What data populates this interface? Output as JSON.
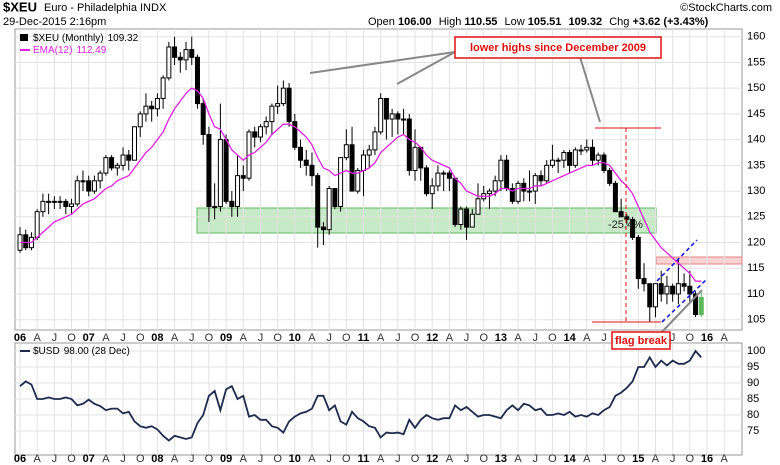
{
  "header": {
    "symbol": "$XEU",
    "name": "Euro - Philadelphia INDX",
    "date": "29-Dec-2015 2:16pm",
    "open_label": "Open",
    "open": "106.00",
    "high_label": "High",
    "high": "110.55",
    "low_label": "Low",
    "low": "105.51",
    "close": "109.32",
    "change_label": "Chg",
    "change": "+3.62 (+3.43%)",
    "credit": "©StockCharts.com"
  },
  "annotations": {
    "lower_highs": "lower highs since December 2009",
    "decline": "-25.4%",
    "flag_break": "flag break"
  },
  "chart_data": [
    {
      "type": "candlestick",
      "ohlc": {
        "name": "$XEU (Monthly)",
        "last_label": "109.32",
        "color": "#000000",
        "last_color": "#5cb85c",
        "open": [
          118.5,
          121.5,
          119,
          121,
          126,
          128,
          128,
          128,
          128,
          127,
          127.5,
          132,
          132,
          130,
          132,
          133.5,
          136.5,
          134.5,
          135,
          137,
          136,
          142.5,
          145,
          146.5,
          146,
          148,
          152,
          158,
          156,
          155.5,
          157.5,
          156,
          147,
          141,
          127,
          127,
          140,
          128,
          127,
          133,
          132.5,
          141.5,
          140.5,
          142.5,
          143.5,
          146.5,
          147,
          150,
          143.5,
          138.5,
          136,
          135,
          133,
          123,
          122.5,
          130.5,
          127,
          136.5,
          139,
          130,
          134,
          137,
          138,
          141.5,
          148,
          144,
          145,
          144,
          144,
          134,
          138.5,
          134.5,
          129.5,
          131,
          133.5,
          133.5,
          132.5,
          123.5,
          126.5,
          123,
          125.5,
          128.5,
          129.5,
          130,
          132,
          136,
          130.5,
          128,
          131.5,
          130,
          130,
          133,
          132,
          135,
          136,
          136,
          137.5,
          135,
          138,
          138,
          138.5,
          136,
          137,
          134,
          131.5,
          126,
          125,
          124.5,
          121,
          113,
          112,
          107.5,
          112,
          110,
          111.5,
          110,
          112,
          111.5,
          110,
          106.0
        ],
        "high": [
          123,
          122.5,
          122,
          126.5,
          129.5,
          129.5,
          129,
          129,
          128.5,
          128.5,
          133,
          134,
          133,
          133,
          134,
          137,
          137,
          135.5,
          138.5,
          138,
          142.5,
          145.5,
          149,
          147.5,
          149,
          152.5,
          159,
          160,
          157,
          159,
          160,
          156.5,
          148,
          142.5,
          131.5,
          147,
          141,
          130,
          137,
          135,
          142,
          142.5,
          143,
          144.5,
          147,
          150.5,
          151.5,
          151,
          145,
          140,
          138,
          137.5,
          133.5,
          124,
          131,
          130,
          136.5,
          142,
          142.5,
          134.5,
          138,
          139,
          142.5,
          149,
          148,
          146,
          145.5,
          146,
          145,
          142,
          137,
          135,
          132.5,
          135,
          134,
          134,
          132.5,
          127,
          127,
          126.5,
          131.5,
          131,
          130.5,
          133,
          137,
          137,
          131.5,
          132,
          132.5,
          134,
          133.5,
          134,
          136,
          139,
          136.5,
          138,
          138,
          138.5,
          139,
          140,
          140,
          137.5,
          137.5,
          134.5,
          132,
          128.5,
          125.5,
          125,
          121.5,
          116,
          112,
          112,
          114.5,
          113.5,
          112,
          117,
          114,
          114.5,
          110.5,
          110.55
        ],
        "low": [
          118,
          118.5,
          118.5,
          120.5,
          125,
          125.5,
          126.5,
          126.5,
          125.5,
          125.5,
          127,
          130,
          129,
          129.5,
          130.5,
          133,
          134,
          133,
          134,
          134,
          136,
          140.5,
          143.5,
          143.5,
          144.5,
          146,
          151.5,
          154.5,
          153,
          153.5,
          154.5,
          146,
          139,
          124,
          124.5,
          126,
          127.5,
          125,
          125,
          130,
          132,
          138.5,
          139.5,
          141,
          141,
          145,
          146.5,
          142.5,
          138,
          134.5,
          133,
          131,
          119,
          119.5,
          121.5,
          126.5,
          126,
          136,
          130,
          129.5,
          129,
          134.5,
          137,
          141,
          140,
          140.5,
          141,
          141,
          133,
          132,
          132,
          129,
          126.5,
          130,
          130,
          130,
          123,
          122.5,
          120.5,
          123.5,
          125.5,
          128,
          126.5,
          129,
          130,
          130,
          127.5,
          127.5,
          128,
          128,
          127.5,
          131,
          131.5,
          134.5,
          133.5,
          134.5,
          133.5,
          134.5,
          137,
          137.5,
          135,
          135,
          133.5,
          131,
          126,
          125,
          123.5,
          120.5,
          111,
          110.5,
          104.5,
          105.5,
          108.5,
          108,
          108.5,
          108,
          110.5,
          108.5,
          105.5,
          105.51
        ],
        "close": [
          121.5,
          119,
          121,
          126,
          128,
          128,
          128,
          128,
          127,
          127.5,
          132,
          132,
          130,
          132,
          133.5,
          136.5,
          134.5,
          135,
          137,
          136,
          142.5,
          145,
          146.5,
          146,
          148,
          152,
          158,
          156,
          155.5,
          157.5,
          156,
          147,
          141,
          127,
          127,
          140,
          128,
          127,
          133,
          132.5,
          141.5,
          140.5,
          142.5,
          143.5,
          146.5,
          147,
          150,
          143.5,
          138.5,
          136,
          135,
          133,
          123,
          122.5,
          130.5,
          127,
          136.5,
          139,
          130,
          134,
          137,
          138,
          141.5,
          148,
          144,
          145,
          144,
          144,
          134,
          138.5,
          134.5,
          129.5,
          131,
          133.5,
          133.5,
          132.5,
          123.5,
          126.5,
          123,
          125.5,
          128.5,
          129.5,
          130,
          132,
          136,
          130.5,
          128,
          131.5,
          130,
          130,
          133,
          132,
          135,
          136,
          136,
          137.5,
          135,
          138,
          138,
          138.5,
          136,
          137,
          134,
          131.5,
          126,
          125,
          124.5,
          121,
          113,
          112,
          107.5,
          112,
          110,
          111.5,
          110,
          112,
          111.5,
          110,
          106,
          109.32
        ]
      },
      "series": [
        {
          "name": "EMA(12)",
          "last_label": "112.49",
          "color": "#e020e0",
          "values": [
            120,
            120,
            120,
            121,
            122,
            123,
            124,
            124.5,
            125,
            125.5,
            126.5,
            127.5,
            128,
            128.5,
            129.5,
            130.5,
            131,
            132,
            132.5,
            133,
            134.5,
            136,
            137.5,
            138.5,
            140,
            141.5,
            144,
            146,
            147.5,
            149,
            150,
            149.5,
            148,
            145,
            142.5,
            142,
            140,
            138,
            137,
            136,
            137,
            137.5,
            138.5,
            139.5,
            141,
            142,
            143,
            143,
            142.5,
            141.5,
            140.5,
            139,
            136.5,
            134.5,
            134,
            133,
            133.5,
            134,
            133.5,
            133.5,
            134,
            134.5,
            135.5,
            137.5,
            138.5,
            139.5,
            140.5,
            141,
            140,
            139.5,
            138.5,
            137,
            136,
            135.5,
            135,
            134.5,
            132.5,
            131.5,
            130,
            129.5,
            129,
            129,
            129,
            129.5,
            130.5,
            130.5,
            130,
            130.5,
            130.5,
            130.5,
            131,
            131,
            131.5,
            132,
            132.5,
            133,
            133.5,
            134,
            134.5,
            135,
            135,
            135.5,
            135.5,
            135,
            133.5,
            132,
            131,
            129.5,
            127,
            124.5,
            122,
            120.5,
            119,
            118,
            117,
            116,
            115,
            114,
            112.5,
            112.49
          ]
        }
      ],
      "ylim": [
        103,
        161.5
      ],
      "yticks": [
        105,
        110,
        115,
        120,
        125,
        130,
        135,
        140,
        145,
        150,
        155,
        160
      ],
      "grid": true,
      "xticks": [
        {
          "value": 0,
          "label": "06"
        },
        {
          "value": 3,
          "label": "A"
        },
        {
          "value": 6,
          "label": "J"
        },
        {
          "value": 9,
          "label": "O"
        },
        {
          "value": 12,
          "label": "07"
        },
        {
          "value": 15,
          "label": "A"
        },
        {
          "value": 18,
          "label": "J"
        },
        {
          "value": 21,
          "label": "O"
        },
        {
          "value": 24,
          "label": "08"
        },
        {
          "value": 27,
          "label": "A"
        },
        {
          "value": 30,
          "label": "J"
        },
        {
          "value": 33,
          "label": "O"
        },
        {
          "value": 36,
          "label": "09"
        },
        {
          "value": 39,
          "label": "A"
        },
        {
          "value": 42,
          "label": "J"
        },
        {
          "value": 45,
          "label": "O"
        },
        {
          "value": 48,
          "label": "10"
        },
        {
          "value": 51,
          "label": "A"
        },
        {
          "value": 54,
          "label": "J"
        },
        {
          "value": 57,
          "label": "O"
        },
        {
          "value": 60,
          "label": "11"
        },
        {
          "value": 63,
          "label": "A"
        },
        {
          "value": 66,
          "label": "J"
        },
        {
          "value": 69,
          "label": "O"
        },
        {
          "value": 72,
          "label": "12"
        },
        {
          "value": 75,
          "label": "A"
        },
        {
          "value": 78,
          "label": "J"
        },
        {
          "value": 81,
          "label": "O"
        },
        {
          "value": 84,
          "label": "13"
        },
        {
          "value": 87,
          "label": "A"
        },
        {
          "value": 90,
          "label": "J"
        },
        {
          "value": 93,
          "label": "O"
        },
        {
          "value": 96,
          "label": "14"
        },
        {
          "value": 99,
          "label": "A"
        },
        {
          "value": 102,
          "label": "J"
        },
        {
          "value": 105,
          "label": "O"
        },
        {
          "value": 108,
          "label": "15"
        },
        {
          "value": 111,
          "label": "A"
        },
        {
          "value": 114,
          "label": "J"
        },
        {
          "value": 117,
          "label": "O"
        },
        {
          "value": 120,
          "label": "16"
        },
        {
          "value": 123,
          "label": "A"
        }
      ]
    },
    {
      "type": "line",
      "series": [
        {
          "name": "$USD",
          "last_label": "98.00 (28 Dec)",
          "color": "#1c2b4d",
          "values": [
            89,
            90.5,
            89.5,
            85,
            85,
            85.5,
            85,
            85,
            85.5,
            85,
            83,
            83.5,
            84.8,
            83.5,
            82.8,
            81.5,
            82,
            82,
            80.5,
            81,
            78,
            76.5,
            76,
            76.5,
            75.5,
            73.5,
            72,
            73.5,
            73,
            72.5,
            73,
            77.5,
            80,
            86,
            87.5,
            81.5,
            88,
            89,
            85,
            86,
            79.5,
            80,
            78.5,
            78.5,
            76.5,
            76,
            74.5,
            78,
            79.5,
            80.5,
            81,
            82,
            86,
            86,
            81.5,
            83,
            78,
            77,
            81,
            79,
            78,
            76.5,
            76,
            73,
            74.5,
            74.3,
            74.5,
            74,
            78.5,
            76,
            78.5,
            80,
            79,
            78.5,
            79,
            79,
            83,
            81.5,
            82.5,
            81,
            79.5,
            80,
            80,
            79.5,
            79,
            81.5,
            83,
            81.5,
            83.5,
            83,
            81.5,
            82,
            80,
            80,
            80.5,
            80,
            81,
            79.5,
            80,
            79.5,
            80.5,
            80,
            81.5,
            82.5,
            86,
            87,
            88.5,
            90.5,
            95,
            95,
            98,
            95,
            97,
            95.5,
            97,
            96,
            96,
            97,
            100,
            98.0
          ]
        }
      ],
      "ylim": [
        67.5,
        102.5
      ],
      "yticks": [
        75,
        80,
        85,
        90,
        95,
        100
      ],
      "grid": true
    }
  ]
}
